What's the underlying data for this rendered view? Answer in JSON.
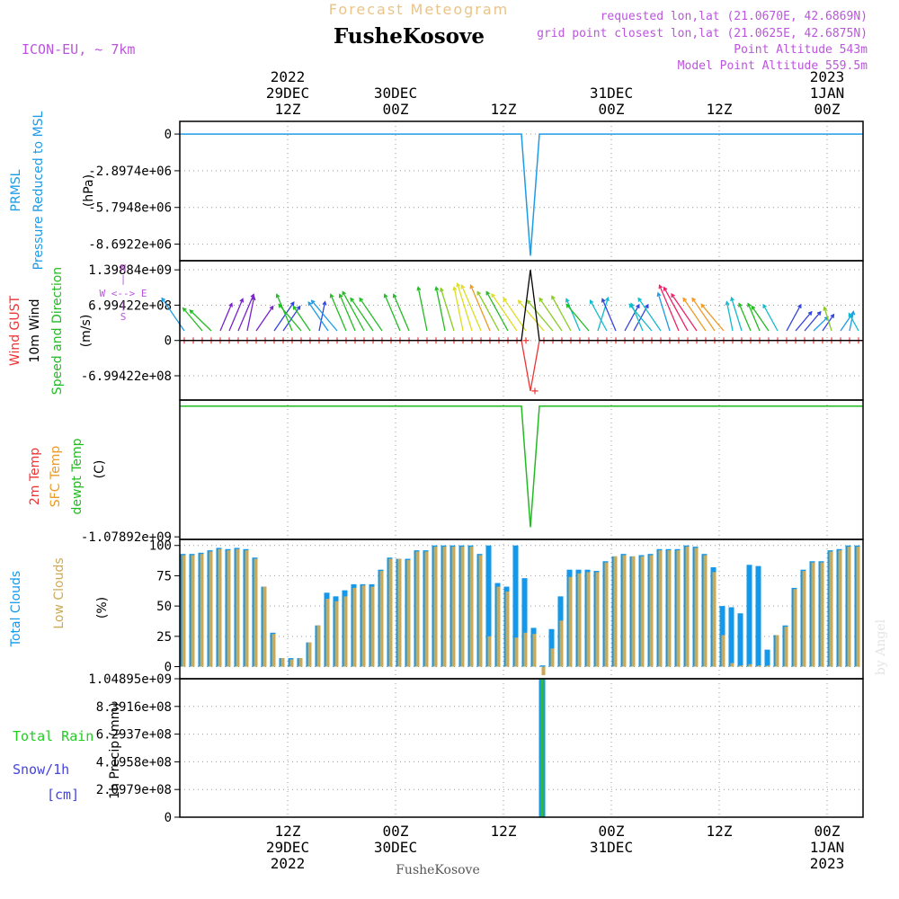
{
  "header": {
    "product": "Forecast Meteogram",
    "station": "FusheKosove",
    "model": "ICON-EU, ~ 7km",
    "requested": "requested lon,lat (21.0670E, 42.6869N)",
    "closest": "grid point closest lon,lat (21.0625E, 42.6875N)",
    "point_altitude": "Point Altitude 543m",
    "model_altitude": "Model Point Altitude 559.5m",
    "watermark": "by Angel",
    "footer": "FusheKosove"
  },
  "time_axis": {
    "top": [
      {
        "t": 12,
        "lines": [
          "2022",
          "29DEC",
          "12Z"
        ]
      },
      {
        "t": 24,
        "lines": [
          "30DEC",
          "00Z"
        ]
      },
      {
        "t": 36,
        "lines": [
          "12Z"
        ]
      },
      {
        "t": 48,
        "lines": [
          "31DEC",
          "00Z"
        ]
      },
      {
        "t": 60,
        "lines": [
          "12Z"
        ]
      },
      {
        "t": 72,
        "lines": [
          "2023",
          "1JAN",
          "00Z"
        ]
      }
    ],
    "bottom": [
      {
        "t": 12,
        "lines": [
          "12Z",
          "29DEC",
          "2022"
        ]
      },
      {
        "t": 24,
        "lines": [
          "00Z",
          "30DEC"
        ]
      },
      {
        "t": 36,
        "lines": [
          "12Z"
        ]
      },
      {
        "t": 48,
        "lines": [
          "00Z",
          "31DEC"
        ]
      },
      {
        "t": 60,
        "lines": [
          "12Z"
        ]
      },
      {
        "t": 72,
        "lines": [
          "00Z",
          "1JAN",
          "2023"
        ]
      }
    ],
    "range": [
      0,
      76
    ]
  },
  "panels": {
    "pressure": {
      "labels": [
        "PRMSL",
        "Pressure Reduced to MSL",
        "(hPa)"
      ],
      "ticks": [
        {
          "v": 0,
          "label": "0"
        },
        {
          "v": -2897400.0,
          "label": "-2.8974e+06"
        },
        {
          "v": -5794800.0,
          "label": "-5.7948e+06"
        },
        {
          "v": -8692200.0,
          "label": "-8.6922e+06"
        }
      ],
      "ylim": [
        -10000000.0,
        1000000.0
      ]
    },
    "wind": {
      "labels": [
        "Wind GUST",
        "10m Wind",
        "(m/s)",
        "Speed and Direction"
      ],
      "ticks": [
        {
          "v": 1398840000.0,
          "label": "1.39884e+09"
        },
        {
          "v": 699422000.0,
          "label": "6.99422e+08"
        },
        {
          "v": 0,
          "label": "0"
        },
        {
          "v": -699422000.0,
          "label": "-6.99422e+08"
        }
      ],
      "ylim": [
        -1180000000.0,
        1580000000.0
      ],
      "compass": [
        "N",
        "W <--> E",
        "S"
      ]
    },
    "temp": {
      "labels": [
        "2m Temp",
        "SFC Temp",
        "dewpt Temp",
        "(C)"
      ],
      "ticks": [
        {
          "v": -1078920000.0,
          "label": "-1.07892e+09"
        }
      ],
      "ylim": [
        -1100000000.0,
        50000000.0
      ]
    },
    "clouds": {
      "labels": [
        "Total Clouds",
        "Low Clouds",
        "(%)"
      ],
      "ticks": [
        {
          "v": 100,
          "label": "100"
        },
        {
          "v": 75,
          "label": "75"
        },
        {
          "v": 50,
          "label": "50"
        },
        {
          "v": 25,
          "label": "25"
        },
        {
          "v": 0,
          "label": "0"
        }
      ],
      "ylim": [
        -10,
        105
      ]
    },
    "precip": {
      "labels": [
        "Total Rain",
        "Snow/1h",
        "[cm]",
        "1h Precip (mm)"
      ],
      "ticks": [
        {
          "v": 1048950000.0,
          "label": "1.04895e+09"
        },
        {
          "v": 839160000.0,
          "label": "8.3916e+08"
        },
        {
          "v": 629370000.0,
          "label": "6.2937e+08"
        },
        {
          "v": 419580000.0,
          "label": "4.1958e+08"
        },
        {
          "v": 209790000.0,
          "label": "2.0979e+08"
        },
        {
          "v": 0,
          "label": "0"
        }
      ],
      "ylim": [
        0,
        1048950000.0
      ]
    }
  },
  "colors": {
    "pressure": "#1e9be6",
    "gust": "#ee3333",
    "wind": "#000000",
    "dewpt": "#22bb22",
    "total_clouds": "#1199ee",
    "low_clouds": "#ccaa55",
    "model_label": "#bb55dd",
    "title_faded": "#e8c48a",
    "snow": "#4444dd",
    "rain": "#33bb33"
  },
  "chart_data": [
    {
      "type": "line",
      "title": "PRMSL Pressure Reduced to MSL",
      "ylabel": "(hPa)",
      "series": [
        {
          "name": "PRMSL",
          "x": [
            0,
            38,
            39,
            40,
            76
          ],
          "values": [
            0,
            0,
            -9600000.0,
            0,
            0
          ]
        }
      ]
    },
    {
      "type": "line",
      "title": "Wind GUST / 10m Wind Speed and Direction",
      "ylabel": "(m/s)",
      "series": [
        {
          "name": "Wind GUST",
          "x": [
            0,
            38,
            39,
            40,
            76
          ],
          "values": [
            0,
            0,
            -1000000000.0,
            0,
            0
          ]
        },
        {
          "name": "10m Wind",
          "x": [
            0,
            38,
            39,
            40,
            76
          ],
          "values": [
            0,
            0,
            1398840000.0,
            0,
            0
          ]
        }
      ]
    },
    {
      "type": "line",
      "title": "2m Temp / SFC Temp / dewpt Temp",
      "ylabel": "(C)",
      "series": [
        {
          "name": "dewpt Temp",
          "x": [
            0,
            38,
            39,
            40,
            76
          ],
          "values": [
            0,
            0,
            -1000000000.0,
            0,
            0
          ]
        }
      ]
    },
    {
      "type": "bar",
      "title": "Total Clouds / Low Clouds",
      "ylabel": "(%)",
      "x": [
        0,
        1,
        2,
        3,
        4,
        5,
        6,
        7,
        8,
        9,
        10,
        11,
        12,
        13,
        14,
        15,
        16,
        17,
        18,
        19,
        20,
        21,
        22,
        23,
        24,
        25,
        26,
        27,
        28,
        29,
        30,
        31,
        32,
        33,
        34,
        35,
        36,
        37,
        38,
        39,
        40,
        41,
        42,
        43,
        44,
        45,
        46,
        47,
        48,
        49,
        50,
        51,
        52,
        53,
        54,
        55,
        56,
        57,
        58,
        59,
        60,
        61,
        62,
        63,
        64,
        65,
        66,
        67,
        68,
        69,
        70,
        71,
        72,
        73,
        74,
        75
      ],
      "series": [
        {
          "name": "Total Clouds",
          "values": [
            93,
            93,
            94,
            96,
            98,
            97,
            98,
            97,
            90,
            66,
            28,
            7,
            7,
            7,
            20,
            34,
            61,
            58,
            63,
            68,
            68,
            68,
            80,
            90,
            89,
            89,
            96,
            96,
            100,
            100,
            100,
            100,
            100,
            93,
            100,
            69,
            66,
            100,
            73,
            32,
            1,
            31,
            58,
            80,
            80,
            80,
            79,
            87,
            91,
            93,
            91,
            92,
            93,
            97,
            97,
            97,
            100,
            99,
            93,
            82,
            50,
            49,
            44,
            84,
            83,
            14,
            26,
            34,
            65,
            80,
            87,
            87,
            96,
            97,
            100,
            100
          ]
        },
        {
          "name": "Low Clouds",
          "values": [
            92,
            92,
            93,
            95,
            97,
            96,
            97,
            96,
            89,
            66,
            27,
            7,
            6,
            7,
            20,
            34,
            56,
            54,
            58,
            65,
            67,
            66,
            79,
            89,
            89,
            88,
            95,
            95,
            99,
            99,
            99,
            99,
            99,
            92,
            25,
            66,
            62,
            24,
            28,
            27,
            -7,
            15,
            38,
            74,
            77,
            78,
            78,
            86,
            91,
            92,
            91,
            91,
            92,
            96,
            96,
            96,
            99,
            98,
            92,
            78,
            26,
            3,
            1,
            2,
            1,
            1,
            26,
            33,
            64,
            79,
            86,
            86,
            95,
            96,
            99,
            99
          ]
        }
      ]
    },
    {
      "type": "bar",
      "title": "Total Rain / Snow/1h",
      "ylabel": "1h Precip (mm)",
      "series": [
        {
          "name": "Total Rain",
          "x": [
            40
          ],
          "values": [
            1048950000.0
          ]
        }
      ]
    }
  ]
}
